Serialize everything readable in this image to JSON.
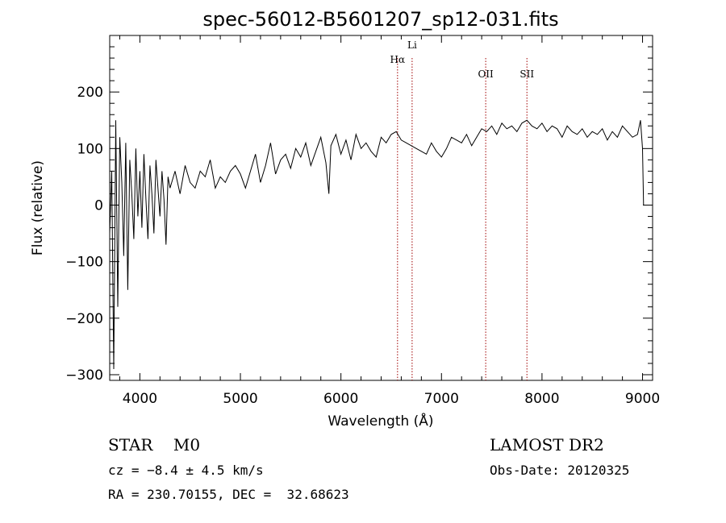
{
  "chart_data": {
    "type": "line",
    "title": "spec-56012-B5601207_sp12-031.fits",
    "xlabel": "Wavelength (Å)",
    "ylabel": "Flux (relative)",
    "xlim": [
      3700,
      9100
    ],
    "ylim": [
      -310,
      300
    ],
    "x_ticks": [
      4000,
      5000,
      6000,
      7000,
      8000,
      9000
    ],
    "x_tick_labels": [
      "4000",
      "5000",
      "6000",
      "7000",
      "8000",
      "9000"
    ],
    "y_ticks": [
      -300,
      -200,
      -100,
      0,
      100,
      200
    ],
    "y_tick_labels": [
      "−300",
      "−200",
      "−100",
      "0",
      "100",
      "200"
    ],
    "grid": false,
    "series": [
      {
        "x": [
          3700,
          3720,
          3740,
          3760,
          3780,
          3800,
          3820,
          3840,
          3860,
          3880,
          3900,
          3920,
          3940,
          3960,
          3980,
          4000,
          4020,
          4040,
          4060,
          4080,
          4100,
          4120,
          4140,
          4160,
          4180,
          4200,
          4220,
          4240,
          4260,
          4280,
          4300,
          4350,
          4400,
          4450,
          4500,
          4550,
          4600,
          4650,
          4700,
          4750,
          4800,
          4850,
          4900,
          4950,
          5000,
          5050,
          5100,
          5150,
          5200,
          5250,
          5300,
          5350,
          5400,
          5450,
          5500,
          5550,
          5600,
          5650,
          5700,
          5750,
          5800,
          5850,
          5880,
          5900,
          5950,
          6000,
          6050,
          6100,
          6150,
          6200,
          6250,
          6300,
          6350,
          6400,
          6450,
          6500,
          6550,
          6600,
          6650,
          6700,
          6750,
          6800,
          6850,
          6900,
          6950,
          7000,
          7050,
          7100,
          7150,
          7200,
          7250,
          7300,
          7350,
          7400,
          7450,
          7500,
          7550,
          7600,
          7650,
          7700,
          7750,
          7800,
          7850,
          7900,
          7950,
          8000,
          8050,
          8100,
          8150,
          8200,
          8250,
          8300,
          8350,
          8400,
          8450,
          8500,
          8550,
          8600,
          8650,
          8700,
          8750,
          8800,
          8850,
          8900,
          8950,
          8980,
          9000,
          9010
        ],
        "y": [
          -50,
          60,
          -290,
          150,
          -180,
          120,
          40,
          -90,
          110,
          -150,
          80,
          20,
          -60,
          100,
          -20,
          60,
          -40,
          90,
          10,
          -60,
          70,
          20,
          -50,
          80,
          30,
          -20,
          60,
          10,
          -70,
          50,
          30,
          60,
          20,
          70,
          40,
          30,
          60,
          50,
          80,
          30,
          50,
          40,
          60,
          70,
          55,
          30,
          60,
          90,
          40,
          70,
          110,
          55,
          80,
          90,
          65,
          100,
          85,
          110,
          70,
          95,
          120,
          75,
          20,
          105,
          125,
          90,
          115,
          80,
          125,
          100,
          110,
          95,
          85,
          120,
          110,
          125,
          130,
          115,
          110,
          105,
          100,
          95,
          90,
          110,
          95,
          85,
          100,
          120,
          115,
          110,
          125,
          105,
          120,
          135,
          130,
          140,
          125,
          145,
          135,
          140,
          130,
          145,
          150,
          140,
          135,
          145,
          130,
          140,
          135,
          120,
          140,
          130,
          125,
          135,
          120,
          130,
          125,
          135,
          115,
          130,
          120,
          140,
          130,
          120,
          125,
          150,
          100,
          0
        ]
      }
    ],
    "annotations": [
      {
        "label": "Hα",
        "x": 6563
      },
      {
        "label": "Li",
        "x": 6708
      },
      {
        "label": "OII",
        "x": 7440
      },
      {
        "label": "SII",
        "x": 7850
      }
    ]
  },
  "info": {
    "class_line": "STAR    M0",
    "survey": "LAMOST DR2",
    "cz": "cz = −8.4 ± 4.5 km/s",
    "obs_date": "Obs-Date: 20120325",
    "coords": "RA = 230.70155, DEC =  32.68623"
  }
}
